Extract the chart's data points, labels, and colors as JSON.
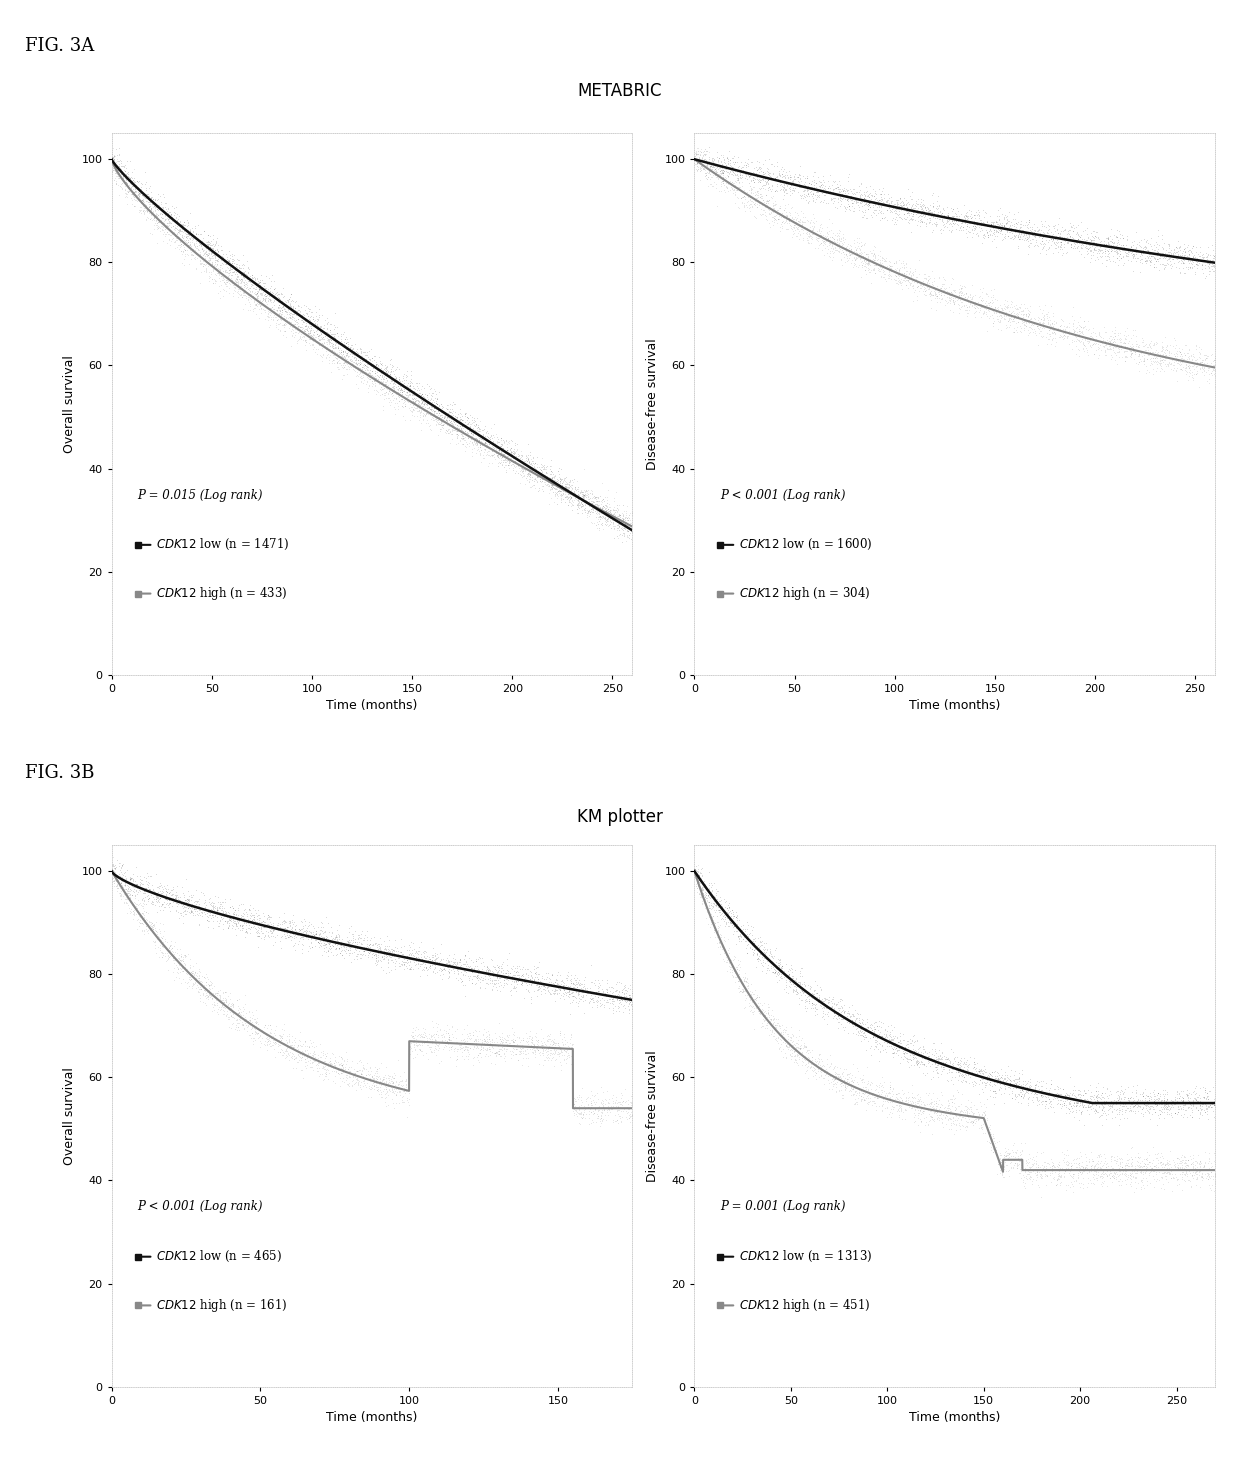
{
  "fig_label_a": "FIG. 3A",
  "fig_label_b": "FIG. 3B",
  "title_a": "METABRIC",
  "title_b": "KM plotter",
  "plot_a1": {
    "ylabel": "Overall survival",
    "xlabel": "Time (months)",
    "xlim": [
      0,
      260
    ],
    "ylim": [
      0,
      105
    ],
    "xticks": [
      0,
      50,
      100,
      150,
      200,
      250
    ],
    "yticks": [
      0,
      20,
      40,
      60,
      80,
      100
    ],
    "p_text": "P = 0.015 (Log rank)",
    "legend1": "CDK12 low (n = 1471)",
    "legend2": "CDK12 high (n = 433)",
    "low_color": "#111111",
    "high_color": "#999999"
  },
  "plot_a2": {
    "ylabel": "Disease-free survival",
    "xlabel": "Time (months)",
    "xlim": [
      0,
      260
    ],
    "ylim": [
      0,
      105
    ],
    "xticks": [
      0,
      50,
      100,
      150,
      200,
      250
    ],
    "yticks": [
      0,
      20,
      40,
      60,
      80,
      100
    ],
    "p_text": "P < 0.001 (Log rank)",
    "legend1": "CDK12 low (n = 1600)",
    "legend2": "CDK12 high (n = 304)",
    "low_color": "#111111",
    "high_color": "#999999"
  },
  "plot_b1": {
    "ylabel": "Overall survival",
    "xlabel": "Time (months)",
    "xlim": [
      0,
      175
    ],
    "ylim": [
      0,
      105
    ],
    "xticks": [
      0,
      50,
      100,
      150
    ],
    "yticks": [
      0,
      20,
      40,
      60,
      80,
      100
    ],
    "p_text": "P < 0.001 (Log rank)",
    "legend1": "CDK12 low (n = 465)",
    "legend2": "CDK12 high (n = 161)",
    "low_color": "#111111",
    "high_color": "#999999"
  },
  "plot_b2": {
    "ylabel": "Disease-free survival",
    "xlabel": "Time (months)",
    "xlim": [
      0,
      270
    ],
    "ylim": [
      0,
      105
    ],
    "xticks": [
      0,
      50,
      100,
      150,
      200,
      250
    ],
    "yticks": [
      0,
      20,
      40,
      60,
      80,
      100
    ],
    "p_text": "P = 0.001 (Log rank)",
    "legend1": "CDK12 low (n = 1313)",
    "legend2": "CDK12 high (n = 451)",
    "low_color": "#111111",
    "high_color": "#999999"
  },
  "background_color": "#ffffff",
  "fig_label_fontsize": 13,
  "title_fontsize": 12,
  "axis_label_fontsize": 9,
  "tick_fontsize": 8,
  "legend_fontsize": 8.5,
  "p_fontsize": 8.5
}
